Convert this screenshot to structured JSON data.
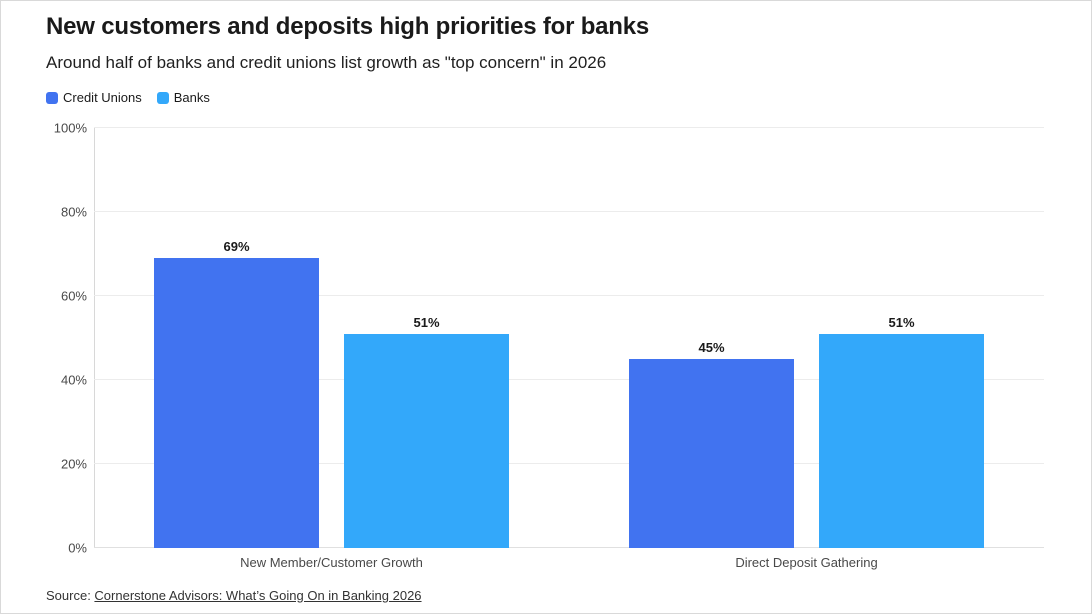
{
  "header": {
    "title": "New customers and deposits high priorities for banks",
    "subtitle": "Around half of banks and credit unions list growth as \"top concern\" in 2026"
  },
  "chart_data": {
    "type": "bar",
    "title": "New customers and deposits high priorities for banks",
    "subtitle": "Around half of banks and credit unions list growth as \"top concern\" in 2026",
    "categories": [
      "New Member/Customer Growth",
      "Direct Deposit Gathering"
    ],
    "series": [
      {
        "name": "Credit Unions",
        "color": "#4173f0",
        "values": [
          69,
          45
        ]
      },
      {
        "name": "Banks",
        "color": "#33a8fa",
        "values": [
          51,
          51
        ]
      }
    ],
    "value_labels": [
      [
        "69%",
        "45%"
      ],
      [
        "51%",
        "51%"
      ]
    ],
    "ylim": [
      0,
      100
    ],
    "yticks": [
      "0%",
      "20%",
      "40%",
      "60%",
      "80%",
      "100%"
    ],
    "grid": true,
    "legend_position": "top-left"
  },
  "source": {
    "prefix": "Source: ",
    "link_text": "Cornerstone Advisors: What’s Going On in Banking 2026"
  }
}
